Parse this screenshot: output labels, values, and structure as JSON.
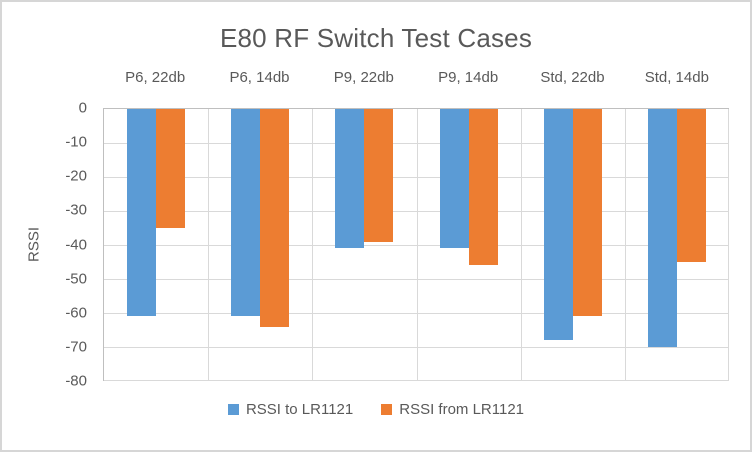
{
  "chart_data": {
    "type": "bar",
    "title": "E80 RF Switch Test Cases",
    "ylabel": "RSSI",
    "xlabel": "",
    "categories": [
      "P6, 22db",
      "P6, 14db",
      "P9, 22db",
      "P9, 14db",
      "Std, 22db",
      "Std, 14db"
    ],
    "series": [
      {
        "name": "RSSI to LR1121",
        "color": "#5B9BD5",
        "values": [
          -61,
          -61,
          -41,
          -41,
          -68,
          -70
        ]
      },
      {
        "name": "RSSI from LR1121",
        "color": "#ED7D31",
        "values": [
          -35,
          -64,
          -39,
          -46,
          -61,
          -45
        ]
      }
    ],
    "ylim": [
      -80,
      0
    ],
    "yticks": [
      0,
      -10,
      -20,
      -30,
      -40,
      -50,
      -60,
      -70,
      -80
    ],
    "grid": true,
    "category_labels_position": "top",
    "legend_position": "bottom",
    "colors": {
      "text": "#595959",
      "gridline": "#D9D9D9",
      "axis": "#BFBFBF",
      "background": "#FFFFFF",
      "frame_border": "#D6D6D6"
    }
  }
}
